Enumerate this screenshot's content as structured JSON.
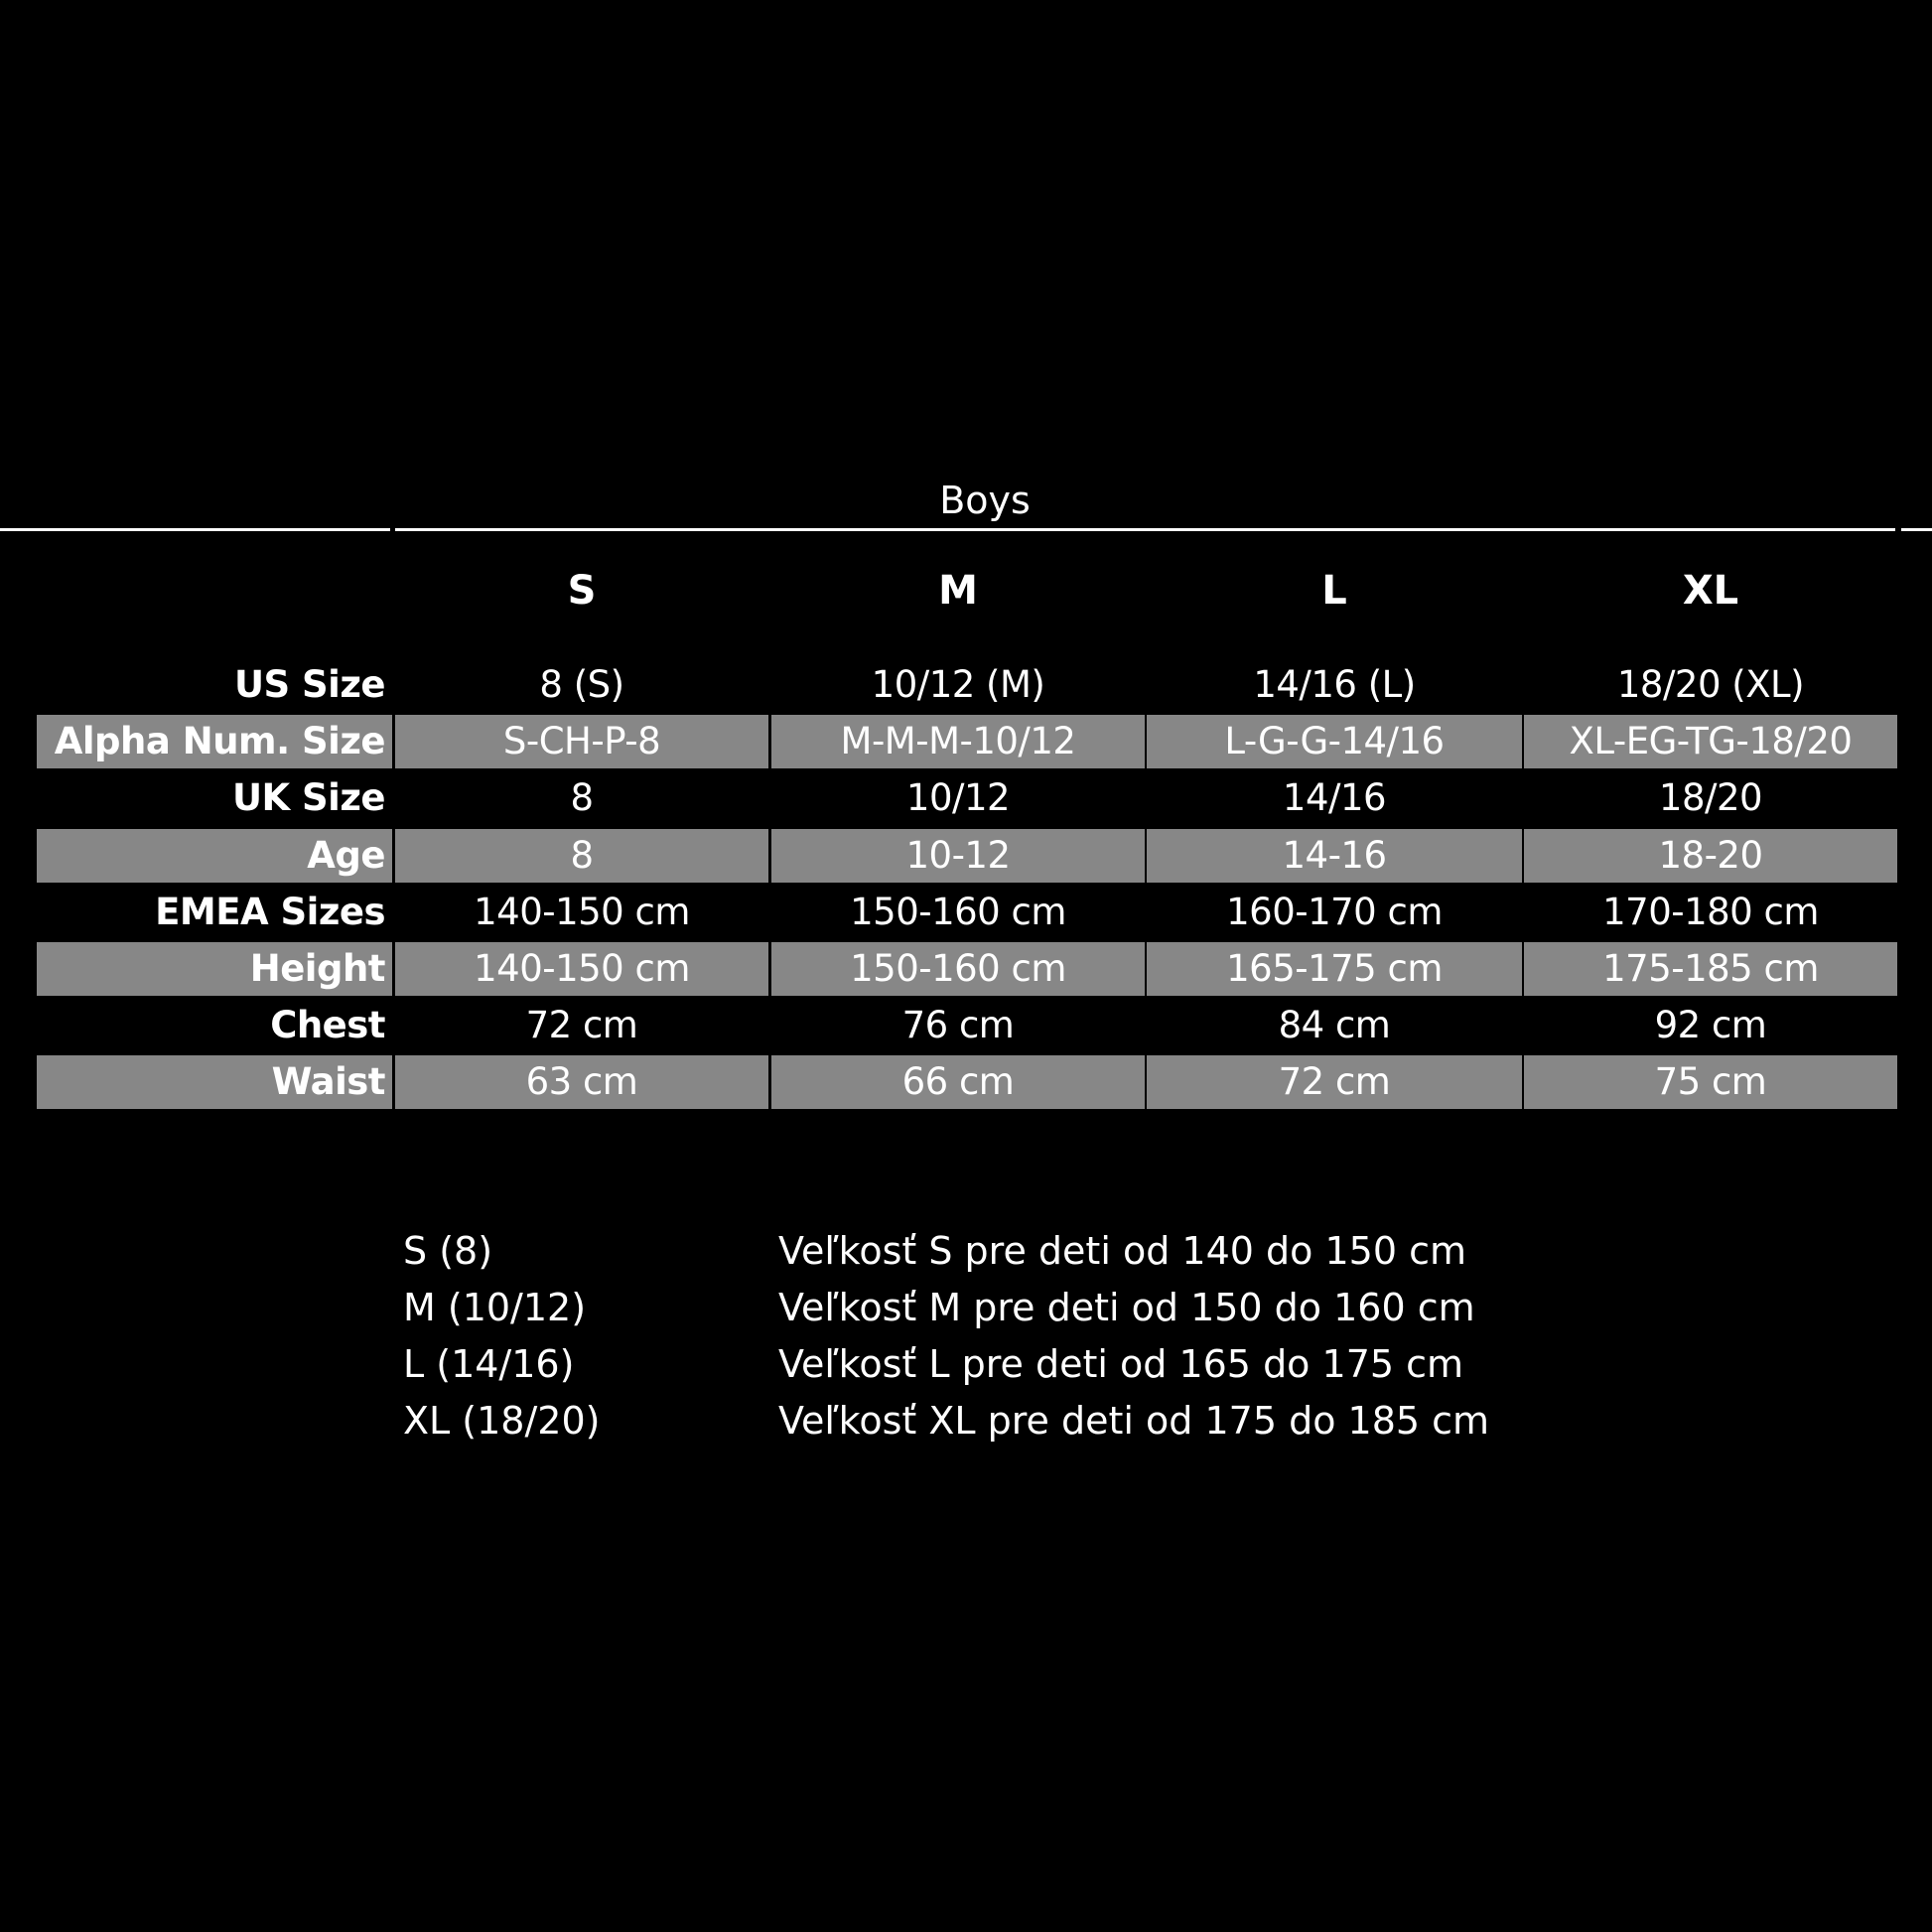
{
  "title": "Boys",
  "columns": [
    "S",
    "M",
    "L",
    "XL"
  ],
  "colors": {
    "background": "#000000",
    "stripe": "#878787",
    "text": "#ffffff"
  },
  "rows": [
    {
      "label": "US Size",
      "values": [
        "8 (S)",
        "10/12 (M)",
        "14/16 (L)",
        "18/20 (XL)"
      ]
    },
    {
      "label": "Alpha Num. Size",
      "values": [
        "S-CH-P-8",
        "M-M-M-10/12",
        "L-G-G-14/16",
        "XL-EG-TG-18/20"
      ]
    },
    {
      "label": "UK Size",
      "values": [
        "8",
        "10/12",
        "14/16",
        "18/20"
      ]
    },
    {
      "label": "Age",
      "values": [
        "8",
        "10-12",
        "14-16",
        "18-20"
      ]
    },
    {
      "label": "EMEA Sizes",
      "values": [
        "140-150 cm",
        "150-160 cm",
        "160-170 cm",
        "170-180 cm"
      ]
    },
    {
      "label": "Height",
      "values": [
        "140-150 cm",
        "150-160 cm",
        "165-175 cm",
        "175-185 cm"
      ]
    },
    {
      "label": "Chest",
      "values": [
        "72 cm",
        "76 cm",
        "84 cm",
        "92 cm"
      ]
    },
    {
      "label": "Waist",
      "values": [
        "63 cm",
        "66 cm",
        "72 cm",
        "75 cm"
      ]
    }
  ],
  "notes": [
    {
      "size": "S (8)",
      "text": "Veľkosť S pre deti od 140 do 150 cm"
    },
    {
      "size": "M (10/12)",
      "text": "Veľkosť M pre deti od 150 do 160 cm"
    },
    {
      "size": "L (14/16)",
      "text": "Veľkosť L pre deti od 165 do 175 cm"
    },
    {
      "size": "XL (18/20)",
      "text": "Veľkosť XL pre deti od 175 do 185 cm"
    }
  ]
}
